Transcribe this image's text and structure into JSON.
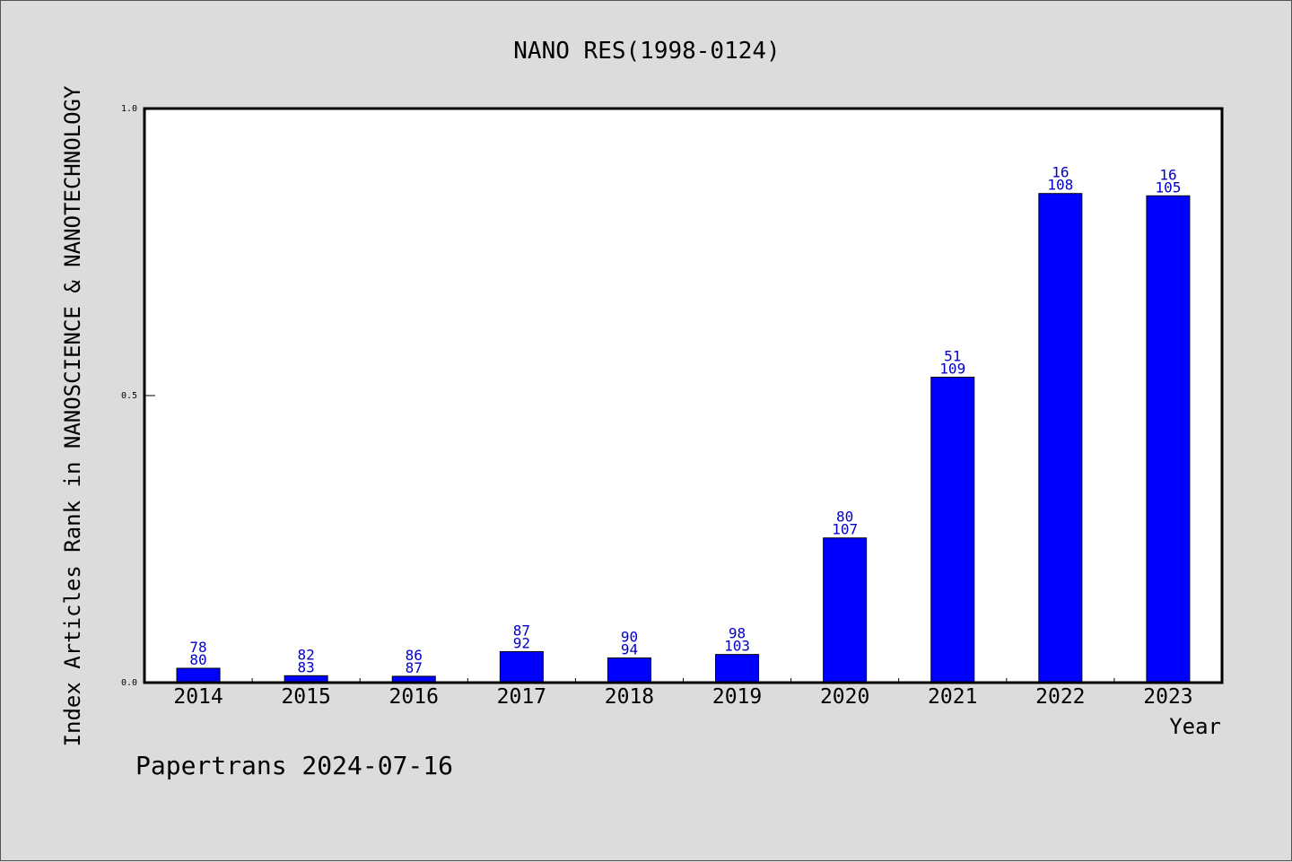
{
  "chart_data": {
    "type": "bar",
    "title": "NANO RES(1998-0124)",
    "xlabel": "Year",
    "ylabel": "Index Articles Rank in NANOSCIENCE & NANOTECHNOLOGY",
    "ylim": [
      0.0,
      1.0
    ],
    "yticks": [
      "0.0",
      "0.5",
      "1.0"
    ],
    "grid": false,
    "legend": "none",
    "bar_color": "#0000ff",
    "label_color": "#0000cc",
    "categories": [
      "2014",
      "2015",
      "2016",
      "2017",
      "2018",
      "2019",
      "2020",
      "2021",
      "2022",
      "2023"
    ],
    "values": [
      0.025,
      0.012,
      0.011,
      0.054,
      0.043,
      0.049,
      0.252,
      0.532,
      0.852,
      0.848
    ],
    "rank": [
      "78",
      "82",
      "86",
      "87",
      "90",
      "98",
      "80",
      "51",
      "16",
      "16"
    ],
    "total": [
      "80",
      "83",
      "87",
      "92",
      "94",
      "103",
      "107",
      "109",
      "108",
      "105"
    ]
  },
  "footer": "Papertrans 2024-07-16"
}
